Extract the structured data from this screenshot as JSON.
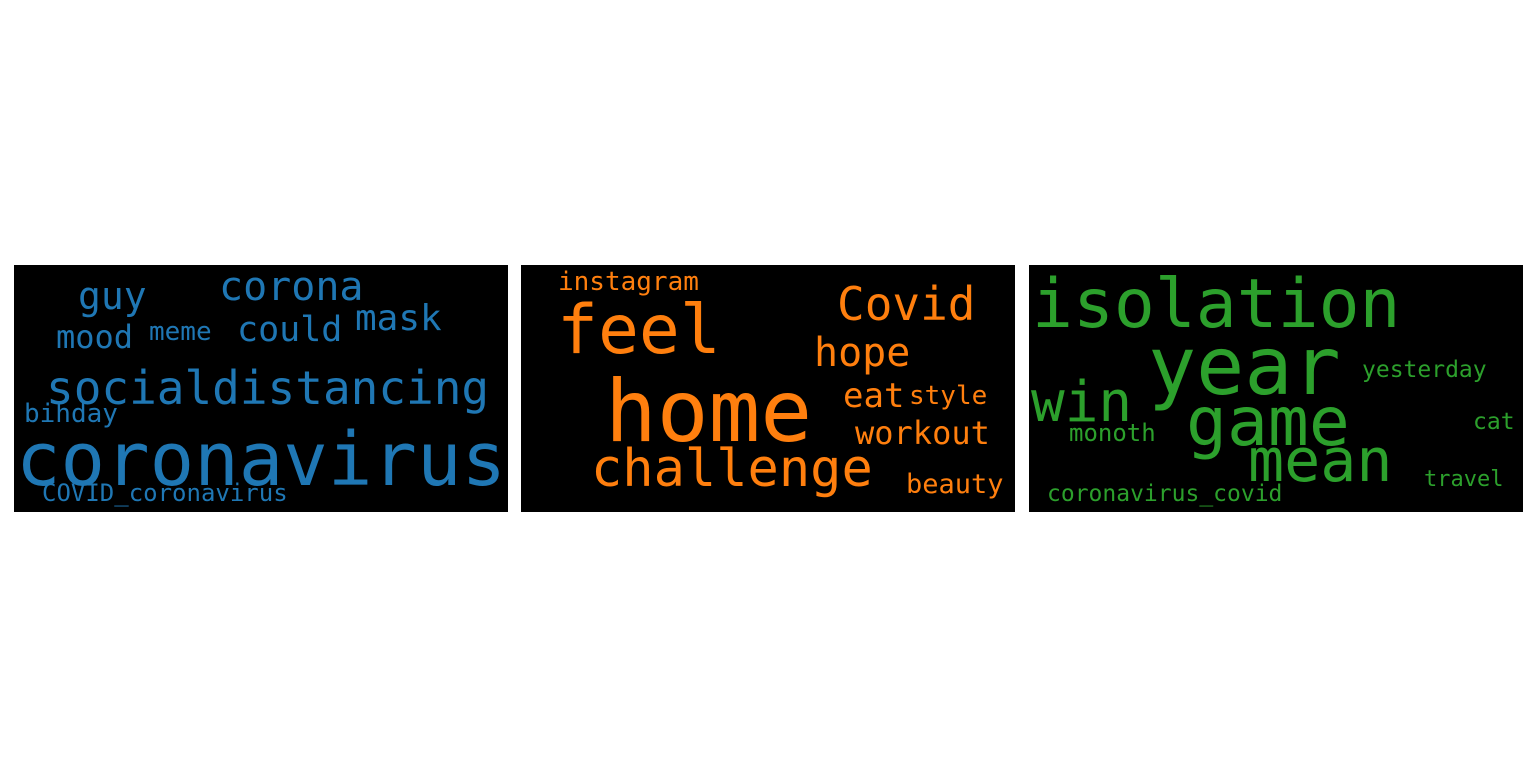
{
  "colors": {
    "page_background": "#ffffff",
    "panel_background": "#000000",
    "panel_1_text": "#1f77b4",
    "panel_2_text": "#ff7f0e",
    "panel_3_text": "#2ca02c"
  },
  "clouds": [
    {
      "words": {
        "coronavirus": "coronavirus",
        "socialdistancing": "socialdistancing",
        "corona": "corona",
        "guy": "guy",
        "mask": "mask",
        "could": "could",
        "mood": "mood",
        "meme": "meme",
        "bihday": "bihday",
        "covid_coronavirus": "COVID_coronavirus"
      }
    },
    {
      "words": {
        "home": "home",
        "feel": "feel",
        "challenge": "challenge",
        "covid": "Covid",
        "hope": "hope",
        "instagram": "instagram",
        "eat": "eat",
        "style": "style",
        "workout": "workout",
        "beauty": "beauty"
      }
    },
    {
      "words": {
        "isolation": "isolation",
        "year": "year",
        "game": "game",
        "mean": "mean",
        "win": "win",
        "yesterday": "yesterday",
        "monoth": "monoth",
        "cat": "cat",
        "travel": "travel",
        "coronavirus_covid": "coronavirus_covid"
      }
    }
  ]
}
